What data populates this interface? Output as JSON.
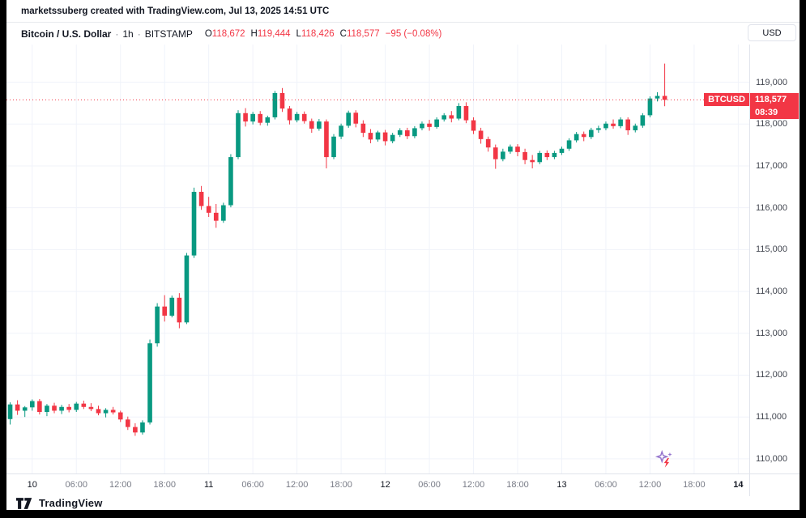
{
  "attribution": "marketssuberg created with TradingView.com, Jul 13, 2025 14:51 UTC",
  "header": {
    "symbol_title": "Bitcoin / U.S. Dollar",
    "dot": "·",
    "interval": "1h",
    "exchange": "BITSTAMP",
    "ohlc": {
      "o_label": "O",
      "o_value": "118,672",
      "h_label": "H",
      "h_value": "119,444",
      "l_label": "L",
      "l_value": "118,426",
      "c_label": "C",
      "c_value": "118,577",
      "change": "−95 (−0.08%)"
    },
    "currency_button": "USD"
  },
  "price_label": {
    "symbol": "BTCUSD",
    "price": "118,577",
    "countdown": "08:39"
  },
  "footer": {
    "brand": "TradingView"
  },
  "colors": {
    "up": "#089981",
    "down": "#f23645",
    "accent": "#f23645",
    "text": "#131722",
    "muted": "#787b86",
    "grid": "#f0f3fa",
    "axis_border": "#e0e3eb"
  },
  "chart_data": {
    "type": "candlestick",
    "symbol": "BTCUSD",
    "exchange": "BITSTAMP",
    "interval": "1h",
    "current_price": 118577,
    "y_axis": {
      "min": 109650,
      "max": 119900,
      "tick_step": 1000,
      "ticks": [
        119000,
        118000,
        117000,
        116000,
        115000,
        114000,
        113000,
        112000,
        111000,
        110000
      ]
    },
    "x_axis": {
      "slots": 101,
      "labels": [
        {
          "i": 3,
          "t": "10",
          "major": true
        },
        {
          "i": 9,
          "t": "06:00",
          "major": false
        },
        {
          "i": 15,
          "t": "12:00",
          "major": false
        },
        {
          "i": 21,
          "t": "18:00",
          "major": false
        },
        {
          "i": 27,
          "t": "11",
          "major": true
        },
        {
          "i": 33,
          "t": "06:00",
          "major": false
        },
        {
          "i": 39,
          "t": "12:00",
          "major": false
        },
        {
          "i": 45,
          "t": "18:00",
          "major": false
        },
        {
          "i": 51,
          "t": "12",
          "major": true
        },
        {
          "i": 57,
          "t": "06:00",
          "major": false
        },
        {
          "i": 63,
          "t": "12:00",
          "major": false
        },
        {
          "i": 69,
          "t": "18:00",
          "major": false
        },
        {
          "i": 75,
          "t": "13",
          "major": true
        },
        {
          "i": 81,
          "t": "06:00",
          "major": false
        },
        {
          "i": 87,
          "t": "12:00",
          "major": false
        },
        {
          "i": 93,
          "t": "18:00",
          "major": false
        },
        {
          "i": 99,
          "t": "14",
          "major": true,
          "future": true
        }
      ]
    },
    "candles": [
      [
        110950,
        111350,
        110820,
        111300
      ],
      [
        111300,
        111400,
        111050,
        111150
      ],
      [
        111150,
        111260,
        111000,
        111230
      ],
      [
        111230,
        111420,
        111150,
        111380
      ],
      [
        111380,
        111430,
        111060,
        111120
      ],
      [
        111120,
        111310,
        111020,
        111270
      ],
      [
        111270,
        111340,
        111090,
        111150
      ],
      [
        111150,
        111290,
        111070,
        111240
      ],
      [
        111240,
        111310,
        111110,
        111170
      ],
      [
        111170,
        111360,
        111120,
        111320
      ],
      [
        111320,
        111390,
        111190,
        111240
      ],
      [
        111240,
        111330,
        111140,
        111190
      ],
      [
        111190,
        111270,
        111040,
        111090
      ],
      [
        111090,
        111210,
        110990,
        111170
      ],
      [
        111170,
        111240,
        111060,
        111110
      ],
      [
        111110,
        111150,
        110880,
        110940
      ],
      [
        110940,
        111010,
        110690,
        110760
      ],
      [
        110760,
        110850,
        110550,
        110630
      ],
      [
        110630,
        110920,
        110580,
        110870
      ],
      [
        110870,
        112850,
        110820,
        112760
      ],
      [
        112760,
        113720,
        112680,
        113640
      ],
      [
        113640,
        113910,
        113280,
        113420
      ],
      [
        113420,
        113900,
        113380,
        113850
      ],
      [
        113850,
        113960,
        113120,
        113260
      ],
      [
        113260,
        114920,
        113220,
        114860
      ],
      [
        114860,
        116480,
        114800,
        116380
      ],
      [
        116380,
        116520,
        115950,
        116040
      ],
      [
        116040,
        116260,
        115780,
        115880
      ],
      [
        115880,
        116090,
        115520,
        115690
      ],
      [
        115690,
        116120,
        115640,
        116060
      ],
      [
        116060,
        117280,
        116010,
        117210
      ],
      [
        117210,
        118330,
        117160,
        118260
      ],
      [
        118260,
        118380,
        117940,
        118060
      ],
      [
        118060,
        118290,
        117990,
        118240
      ],
      [
        118240,
        118310,
        117970,
        118030
      ],
      [
        118030,
        118200,
        117960,
        118160
      ],
      [
        118160,
        118790,
        118110,
        118740
      ],
      [
        118740,
        118860,
        118290,
        118370
      ],
      [
        118370,
        118430,
        117990,
        118090
      ],
      [
        118090,
        118290,
        118040,
        118240
      ],
      [
        118240,
        118300,
        118010,
        118070
      ],
      [
        118070,
        118130,
        117790,
        117890
      ],
      [
        117890,
        118120,
        117840,
        118060
      ],
      [
        118060,
        118110,
        116940,
        117210
      ],
      [
        117210,
        117760,
        117160,
        117700
      ],
      [
        117700,
        118010,
        117640,
        117960
      ],
      [
        117960,
        118320,
        117910,
        118270
      ],
      [
        118270,
        118330,
        117920,
        118010
      ],
      [
        118010,
        118090,
        117690,
        117790
      ],
      [
        117790,
        117880,
        117540,
        117630
      ],
      [
        117630,
        117840,
        117580,
        117800
      ],
      [
        117800,
        117860,
        117490,
        117590
      ],
      [
        117590,
        117790,
        117540,
        117740
      ],
      [
        117740,
        117900,
        117690,
        117850
      ],
      [
        117850,
        117910,
        117640,
        117710
      ],
      [
        117710,
        117950,
        117660,
        117900
      ],
      [
        117900,
        118060,
        117850,
        118010
      ],
      [
        118010,
        118100,
        117840,
        117930
      ],
      [
        117930,
        118160,
        117890,
        118110
      ],
      [
        118110,
        118260,
        118060,
        118210
      ],
      [
        118210,
        118310,
        118040,
        118130
      ],
      [
        118130,
        118500,
        118090,
        118430
      ],
      [
        118430,
        118520,
        118020,
        118090
      ],
      [
        118090,
        118160,
        117760,
        117840
      ],
      [
        117840,
        117910,
        117530,
        117640
      ],
      [
        117640,
        117700,
        117340,
        117440
      ],
      [
        117440,
        117510,
        116930,
        117160
      ],
      [
        117160,
        117410,
        117110,
        117340
      ],
      [
        117340,
        117510,
        117290,
        117460
      ],
      [
        117460,
        117520,
        117230,
        117330
      ],
      [
        117330,
        117410,
        117040,
        117140
      ],
      [
        117140,
        117260,
        116940,
        117090
      ],
      [
        117090,
        117360,
        117040,
        117310
      ],
      [
        117310,
        117370,
        117140,
        117210
      ],
      [
        117210,
        117360,
        117160,
        117310
      ],
      [
        117310,
        117460,
        117260,
        117410
      ],
      [
        117410,
        117660,
        117360,
        117610
      ],
      [
        117610,
        117810,
        117560,
        117760
      ],
      [
        117760,
        117820,
        117590,
        117690
      ],
      [
        117690,
        117910,
        117640,
        117860
      ],
      [
        117860,
        117960,
        117790,
        117900
      ],
      [
        117900,
        118060,
        117850,
        118010
      ],
      [
        118010,
        118110,
        117890,
        117950
      ],
      [
        117950,
        118160,
        117900,
        118110
      ],
      [
        118110,
        118160,
        117740,
        117850
      ],
      [
        117850,
        118010,
        117800,
        117960
      ],
      [
        117960,
        118260,
        117910,
        118210
      ],
      [
        118210,
        118660,
        118160,
        118610
      ],
      [
        118610,
        118760,
        118540,
        118672
      ],
      [
        118672,
        119444,
        118426,
        118577
      ]
    ]
  }
}
